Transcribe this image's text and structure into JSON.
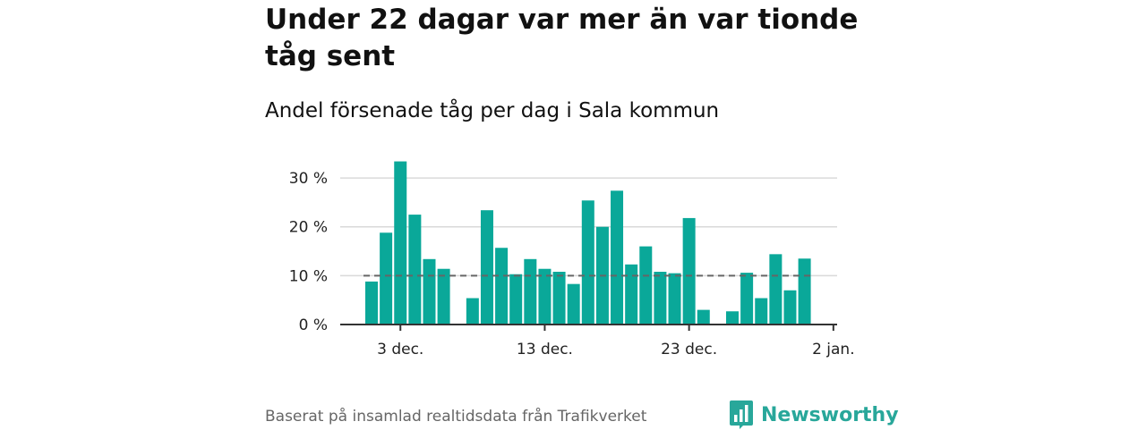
{
  "chart_data": {
    "type": "bar",
    "title": "Under 22 dagar var mer än var tionde tåg sent",
    "subtitle": "Andel försenade tåg per dag i Sala kommun",
    "x": [
      "2023-12-01",
      "2023-12-02",
      "2023-12-03",
      "2023-12-04",
      "2023-12-05",
      "2023-12-06",
      "2023-12-07",
      "2023-12-08",
      "2023-12-09",
      "2023-12-10",
      "2023-12-11",
      "2023-12-12",
      "2023-12-13",
      "2023-12-14",
      "2023-12-15",
      "2023-12-16",
      "2023-12-17",
      "2023-12-18",
      "2023-12-19",
      "2023-12-20",
      "2023-12-21",
      "2023-12-22",
      "2023-12-23",
      "2023-12-24",
      "2023-12-25",
      "2023-12-26",
      "2023-12-27",
      "2023-12-28",
      "2023-12-29",
      "2023-12-30",
      "2023-12-31"
    ],
    "values": [
      8.8,
      18.8,
      33.4,
      22.5,
      13.4,
      11.4,
      null,
      5.4,
      23.4,
      15.7,
      10.3,
      13.4,
      11.4,
      10.8,
      8.3,
      25.4,
      20.0,
      27.4,
      12.3,
      16.0,
      10.8,
      10.5,
      21.8,
      3.0,
      null,
      2.7,
      10.6,
      5.4,
      14.4,
      7.0,
      13.5
    ],
    "bar_color": "#0aa899",
    "reference_line": 10,
    "reference_line_color": "#666666",
    "ylim": [
      0,
      33.5
    ],
    "yticks": [
      0,
      10,
      20,
      30
    ],
    "ytick_labels": [
      "0 %",
      "10 %",
      "20 %",
      "30 %"
    ],
    "xticks": [
      "2023-12-03",
      "2023-12-13",
      "2023-12-23",
      "2024-01-02"
    ],
    "xtick_labels": [
      "3 dec.",
      "13 dec.",
      "23 dec.",
      "2 jan."
    ],
    "grid": true,
    "xlabel": "",
    "ylabel": ""
  },
  "footer": {
    "source": "Baserat på insamlad realtidsdata från Trafikverket",
    "brand": "Newsworthy",
    "brand_color": "#28a79a"
  }
}
